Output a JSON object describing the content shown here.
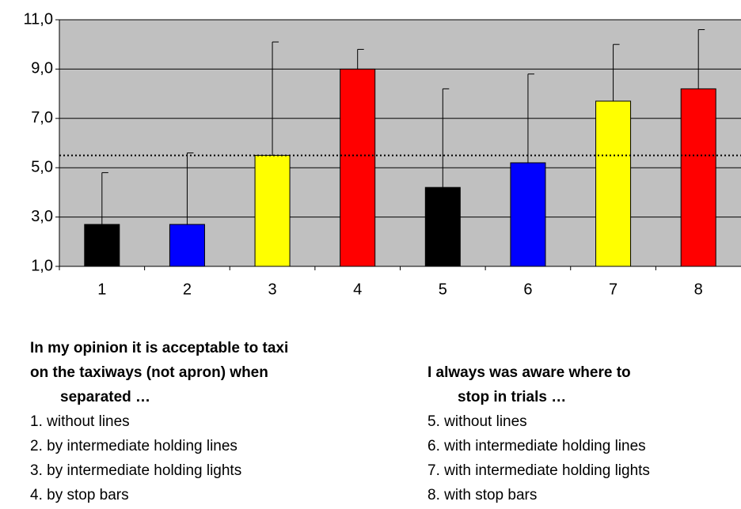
{
  "chart_data": {
    "type": "bar",
    "categories": [
      "1",
      "2",
      "3",
      "4",
      "5",
      "6",
      "7",
      "8"
    ],
    "values": [
      2.7,
      2.7,
      5.5,
      9.0,
      4.2,
      5.2,
      7.7,
      8.2
    ],
    "errors": [
      2.1,
      2.9,
      4.6,
      0.8,
      4.0,
      3.6,
      2.3,
      2.4
    ],
    "colors": [
      "#000000",
      "#0000ff",
      "#ffff00",
      "#ff0000",
      "#000000",
      "#0000ff",
      "#ffff00",
      "#ff0000"
    ],
    "ylim": [
      1,
      11
    ],
    "yticks": [
      {
        "value": 1,
        "label": "1,0"
      },
      {
        "value": 3,
        "label": "3,0"
      },
      {
        "value": 5,
        "label": "5,0"
      },
      {
        "value": 7,
        "label": "7,0"
      },
      {
        "value": 9,
        "label": "9,0"
      },
      {
        "value": 11,
        "label": "11,0"
      }
    ],
    "grid": true,
    "reference_line": 5.5
  },
  "captions": [
    {
      "title_lines": [
        "In my opinion it is acceptable to taxi",
        "on the taxiways (not apron) when",
        "separated …"
      ],
      "items": [
        "1. without lines",
        "2. by intermediate holding lines",
        "3. by intermediate holding lights",
        "4. by stop bars"
      ]
    },
    {
      "title_lines": [
        "I always was aware where to",
        "stop in trials …"
      ],
      "items": [
        "5. without lines",
        "6. with intermediate holding lines",
        "7. with intermediate holding lights",
        "8. with stop bars"
      ]
    }
  ]
}
